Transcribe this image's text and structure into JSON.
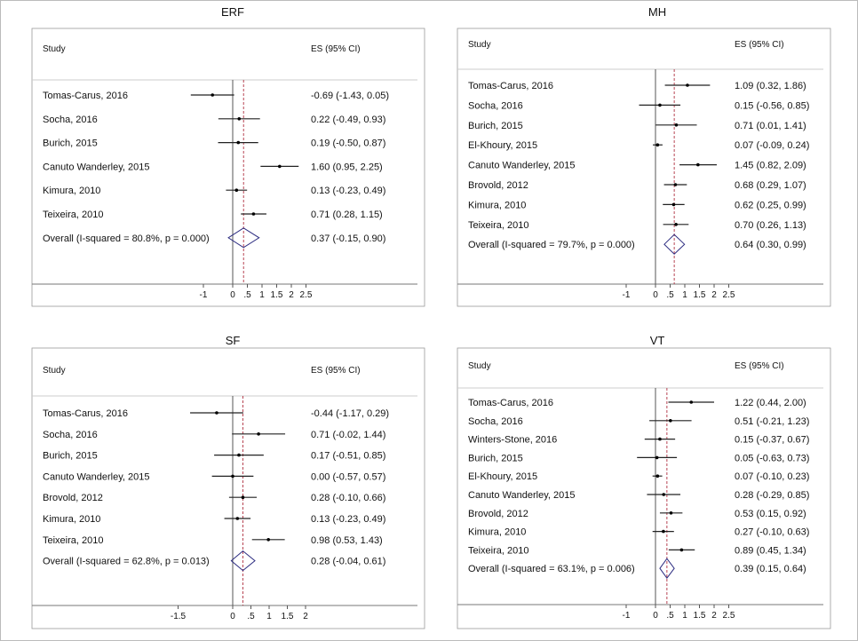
{
  "chart_data": [
    {
      "type": "forest",
      "title": "ERF",
      "header_study": "Study",
      "header_es": "ES (95% CI)",
      "studies": [
        {
          "label": "Tomas-Carus, 2016",
          "es": -0.69,
          "lo": -1.43,
          "hi": 0.05,
          "text": "-0.69 (-1.43, 0.05)"
        },
        {
          "label": "Socha, 2016",
          "es": 0.22,
          "lo": -0.49,
          "hi": 0.93,
          "text": "0.22 (-0.49, 0.93)"
        },
        {
          "label": "Burich, 2015",
          "es": 0.19,
          "lo": -0.5,
          "hi": 0.87,
          "text": "0.19 (-0.50, 0.87)"
        },
        {
          "label": "Canuto Wanderley, 2015",
          "es": 1.6,
          "lo": 0.95,
          "hi": 2.25,
          "text": "1.60 (0.95, 2.25)"
        },
        {
          "label": "Kimura, 2010",
          "es": 0.13,
          "lo": -0.23,
          "hi": 0.49,
          "text": "0.13 (-0.23, 0.49)"
        },
        {
          "label": "Teixeira, 2010",
          "es": 0.71,
          "lo": 0.28,
          "hi": 1.15,
          "text": "0.71 (0.28, 1.15)"
        }
      ],
      "overall": {
        "label": "Overall  (I-squared = 80.8%, p = 0.000)",
        "es": 0.37,
        "lo": -0.15,
        "hi": 0.9,
        "text": "0.37 (-0.15, 0.90)"
      },
      "xticks": [
        -1,
        0,
        0.5,
        1,
        1.5,
        2,
        2.5
      ],
      "xtick_labels": [
        "-1",
        "0",
        ".5",
        "1",
        "1.5",
        "2",
        "2.5"
      ]
    },
    {
      "type": "forest",
      "title": "MH",
      "header_study": "Study",
      "header_es": "ES (95% CI)",
      "studies": [
        {
          "label": "Tomas-Carus, 2016",
          "es": 1.09,
          "lo": 0.32,
          "hi": 1.86,
          "text": "1.09 (0.32, 1.86)"
        },
        {
          "label": "Socha, 2016",
          "es": 0.15,
          "lo": -0.56,
          "hi": 0.85,
          "text": "0.15 (-0.56, 0.85)"
        },
        {
          "label": "Burich, 2015",
          "es": 0.71,
          "lo": 0.01,
          "hi": 1.41,
          "text": "0.71 (0.01, 1.41)"
        },
        {
          "label": "El-Khoury, 2015",
          "es": 0.07,
          "lo": -0.09,
          "hi": 0.24,
          "text": "0.07 (-0.09, 0.24)"
        },
        {
          "label": "Canuto Wanderley, 2015",
          "es": 1.45,
          "lo": 0.82,
          "hi": 2.09,
          "text": "1.45 (0.82, 2.09)"
        },
        {
          "label": "Brovold, 2012",
          "es": 0.68,
          "lo": 0.29,
          "hi": 1.07,
          "text": "0.68 (0.29, 1.07)"
        },
        {
          "label": "Kimura, 2010",
          "es": 0.62,
          "lo": 0.25,
          "hi": 0.99,
          "text": "0.62 (0.25, 0.99)"
        },
        {
          "label": "Teixeira, 2010",
          "es": 0.7,
          "lo": 0.26,
          "hi": 1.13,
          "text": "0.70 (0.26, 1.13)"
        }
      ],
      "overall": {
        "label": "Overall  (I-squared = 79.7%, p = 0.000)",
        "es": 0.64,
        "lo": 0.3,
        "hi": 0.99,
        "text": "0.64 (0.30, 0.99)"
      },
      "xticks": [
        -1,
        0,
        0.5,
        1,
        1.5,
        2,
        2.5
      ],
      "xtick_labels": [
        "-1",
        "0",
        ".5",
        "1",
        "1.5",
        "2",
        "2.5"
      ]
    },
    {
      "type": "forest",
      "title": "SF",
      "header_study": "Study",
      "header_es": "ES (95% CI)",
      "studies": [
        {
          "label": "Tomas-Carus, 2016",
          "es": -0.44,
          "lo": -1.17,
          "hi": 0.29,
          "text": "-0.44 (-1.17, 0.29)"
        },
        {
          "label": "Socha, 2016",
          "es": 0.71,
          "lo": -0.02,
          "hi": 1.44,
          "text": "0.71 (-0.02, 1.44)"
        },
        {
          "label": "Burich, 2015",
          "es": 0.17,
          "lo": -0.51,
          "hi": 0.85,
          "text": "0.17 (-0.51, 0.85)"
        },
        {
          "label": "Canuto Wanderley, 2015",
          "es": 0.0,
          "lo": -0.57,
          "hi": 0.57,
          "text": "0.00 (-0.57, 0.57)"
        },
        {
          "label": "Brovold, 2012",
          "es": 0.28,
          "lo": -0.1,
          "hi": 0.66,
          "text": "0.28 (-0.10, 0.66)"
        },
        {
          "label": "Kimura, 2010",
          "es": 0.13,
          "lo": -0.23,
          "hi": 0.49,
          "text": "0.13 (-0.23, 0.49)"
        },
        {
          "label": "Teixeira, 2010",
          "es": 0.98,
          "lo": 0.53,
          "hi": 1.43,
          "text": "0.98 (0.53, 1.43)"
        }
      ],
      "overall": {
        "label": "Overall  (I-squared = 62.8%, p = 0.013)",
        "es": 0.28,
        "lo": -0.04,
        "hi": 0.61,
        "text": "0.28 (-0.04, 0.61)"
      },
      "xticks": [
        -1.5,
        0,
        0.5,
        1,
        1.5,
        2
      ],
      "xtick_labels": [
        "-1.5",
        "0",
        ".5",
        "1",
        "1.5",
        "2"
      ]
    },
    {
      "type": "forest",
      "title": "VT",
      "header_study": "Study",
      "header_es": "ES (95% CI)",
      "studies": [
        {
          "label": "Tomas-Carus, 2016",
          "es": 1.22,
          "lo": 0.44,
          "hi": 2.0,
          "text": "1.22 (0.44, 2.00)"
        },
        {
          "label": "Socha, 2016",
          "es": 0.51,
          "lo": -0.21,
          "hi": 1.23,
          "text": "0.51 (-0.21, 1.23)"
        },
        {
          "label": "Winters-Stone, 2016",
          "es": 0.15,
          "lo": -0.37,
          "hi": 0.67,
          "text": "0.15 (-0.37, 0.67)"
        },
        {
          "label": "Burich, 2015",
          "es": 0.05,
          "lo": -0.63,
          "hi": 0.73,
          "text": "0.05 (-0.63, 0.73)"
        },
        {
          "label": "El-Khoury, 2015",
          "es": 0.07,
          "lo": -0.1,
          "hi": 0.23,
          "text": "0.07 (-0.10, 0.23)"
        },
        {
          "label": "Canuto Wanderley, 2015",
          "es": 0.28,
          "lo": -0.29,
          "hi": 0.85,
          "text": "0.28 (-0.29, 0.85)"
        },
        {
          "label": "Brovold, 2012",
          "es": 0.53,
          "lo": 0.15,
          "hi": 0.92,
          "text": "0.53 (0.15, 0.92)"
        },
        {
          "label": "Kimura, 2010",
          "es": 0.27,
          "lo": -0.1,
          "hi": 0.63,
          "text": "0.27 (-0.10, 0.63)"
        },
        {
          "label": "Teixeira, 2010",
          "es": 0.89,
          "lo": 0.45,
          "hi": 1.34,
          "text": "0.89 (0.45, 1.34)"
        }
      ],
      "overall": {
        "label": "Overall  (I-squared = 63.1%, p = 0.006)",
        "es": 0.39,
        "lo": 0.15,
        "hi": 0.64,
        "text": "0.39 (0.15, 0.64)"
      },
      "xticks": [
        -1,
        0,
        0.5,
        1,
        1.5,
        2,
        2.5
      ],
      "xtick_labels": [
        "-1",
        "0",
        ".5",
        "1",
        "1.5",
        "2",
        "2.5"
      ]
    }
  ],
  "colors": {
    "diamond": "#2b2b80",
    "overall_line": "#b03040",
    "ci_line": "#222222",
    "frame": "#9a9a9a"
  }
}
